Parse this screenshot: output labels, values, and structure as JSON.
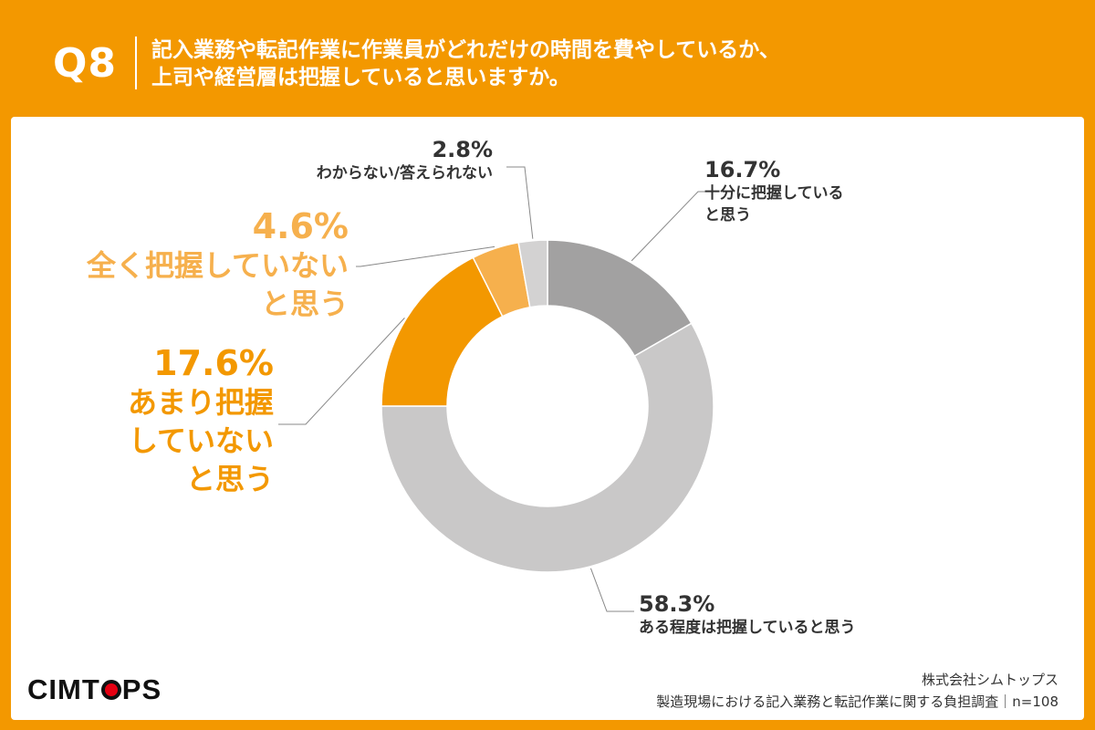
{
  "header": {
    "question_number": "Q8",
    "question_line1": "記入業務や転記作業に作業員がどれだけの時間を費やしているか、",
    "question_line2": "上司や経営層は把握していると思いますか。"
  },
  "chart_data": {
    "type": "pie",
    "donut": true,
    "categories": [
      "十分に把握していると思う",
      "ある程度は把握していると思う",
      "あまり把握していないと思う",
      "全く把握していないと思う",
      "わからない/答えられない"
    ],
    "values": [
      16.7,
      58.3,
      17.6,
      4.6,
      2.8
    ],
    "colors": [
      "#A2A1A1",
      "#C9C8C8",
      "#F39800",
      "#F6B04D",
      "#D3D2D2"
    ],
    "unit": "%"
  },
  "labels": [
    {
      "pct": "16.7%",
      "lines": [
        "十分に把握している",
        "と思う"
      ]
    },
    {
      "pct": "58.3%",
      "lines": [
        "ある程度は把握していると思う"
      ]
    },
    {
      "pct": "17.6%",
      "lines": [
        "あまり把握",
        "していない",
        "と思う"
      ]
    },
    {
      "pct": "4.6%",
      "lines": [
        "全く把握していない",
        "と思う"
      ]
    },
    {
      "pct": "2.8%",
      "lines": [
        "わからない/答えられない"
      ]
    }
  ],
  "logo": {
    "text_before": "CIMT",
    "text_after": "PS"
  },
  "footer": {
    "company": "株式会社シムトップス",
    "survey": "製造現場における記入業務と転記作業に関する負担調査｜n=108"
  }
}
